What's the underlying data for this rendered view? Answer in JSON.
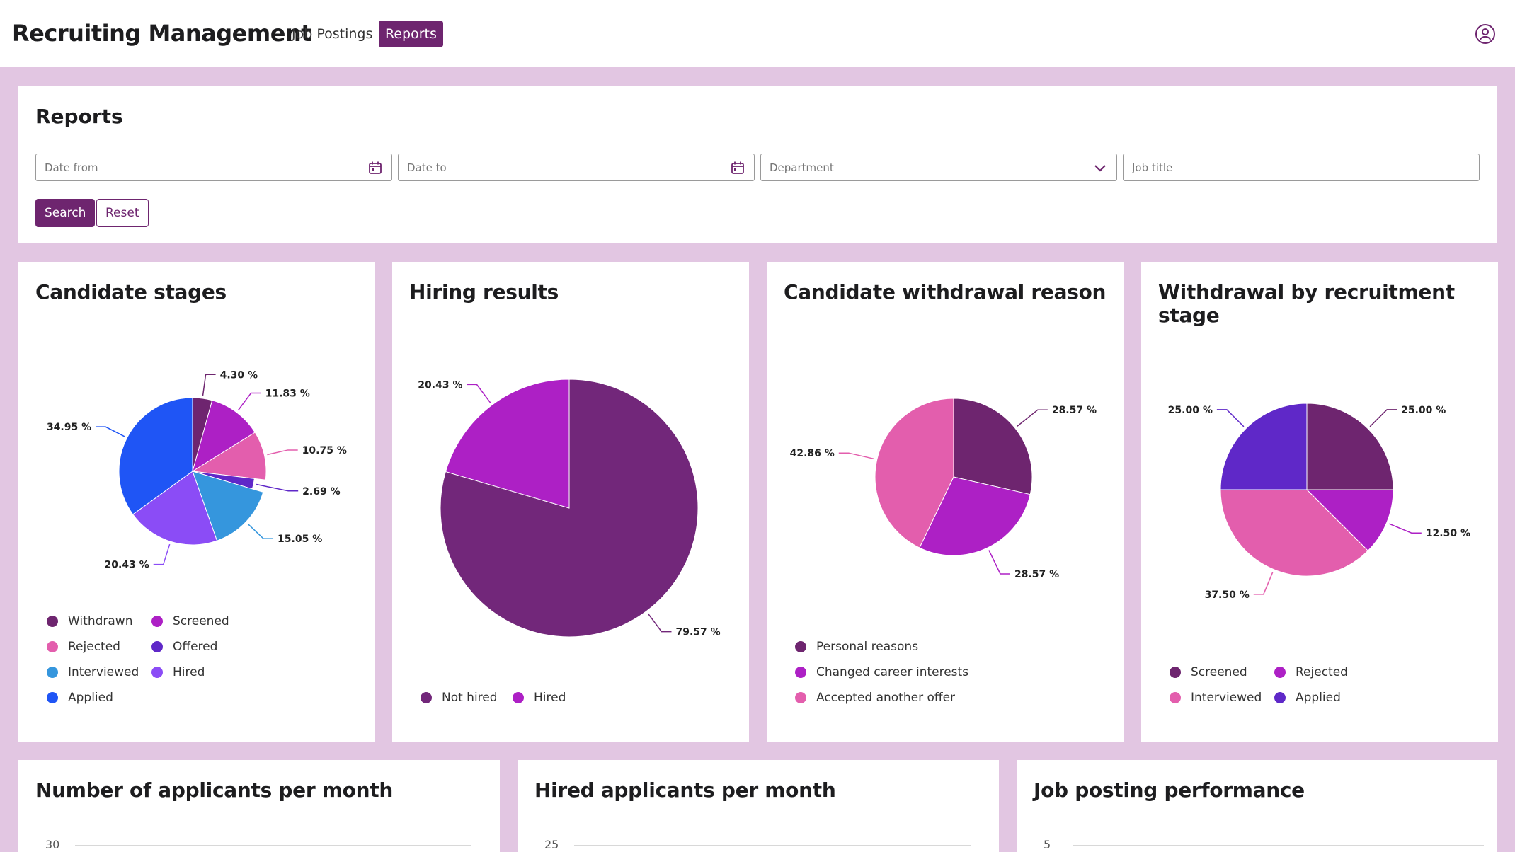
{
  "header": {
    "app_title": "Recruiting Management",
    "tabs": [
      {
        "label": "Job Postings",
        "active": false
      },
      {
        "label": "Reports",
        "active": true
      }
    ],
    "user_icon": "user-circle-icon"
  },
  "filters": {
    "title": "Reports",
    "date_from_placeholder": "Date from",
    "date_to_placeholder": "Date to",
    "department_placeholder": "Department",
    "job_title_placeholder": "Job title",
    "search_label": "Search",
    "reset_label": "Reset"
  },
  "colors": {
    "primary": "#6e256f",
    "withdrawn": "#6e256f",
    "screened": "#ad20c5",
    "rejected": "#e35ead",
    "offered": "#5f28c8",
    "interviewed": "#3596dd",
    "hired": "#8b4cf6",
    "applied": "#1f55f5",
    "not_hired": "#72277a",
    "page_bg": "#e2c6e2"
  },
  "chart_data": [
    {
      "id": "candidate_stages",
      "type": "pie",
      "title": "Candidate stages",
      "slices": [
        {
          "name": "Withdrawn",
          "value": 4.3,
          "label": "4.30 %",
          "color": "#6e256f"
        },
        {
          "name": "Screened",
          "value": 11.83,
          "label": "11.83 %",
          "color": "#ad20c5"
        },
        {
          "name": "Rejected",
          "value": 10.75,
          "label": "10.75 %",
          "color": "#e35ead"
        },
        {
          "name": "Offered",
          "value": 2.69,
          "label": "2.69 %",
          "color": "#5f28c8"
        },
        {
          "name": "Interviewed",
          "value": 15.05,
          "label": "15.05 %",
          "color": "#3596dd"
        },
        {
          "name": "Hired",
          "value": 20.43,
          "label": "20.43 %",
          "color": "#8b4cf6"
        },
        {
          "name": "Applied",
          "value": 34.95,
          "label": "34.95 %",
          "color": "#1f55f5"
        }
      ],
      "legend": [
        "Withdrawn",
        "Screened",
        "Rejected",
        "Offered",
        "Interviewed",
        "Hired",
        "Applied"
      ]
    },
    {
      "id": "hiring_results",
      "type": "pie",
      "title": "Hiring results",
      "slices": [
        {
          "name": "Not hired",
          "value": 79.57,
          "label": "79.57 %",
          "color": "#72277a"
        },
        {
          "name": "Hired",
          "value": 20.43,
          "label": "20.43 %",
          "color": "#ad20c5"
        }
      ],
      "legend": [
        "Not hired",
        "Hired"
      ]
    },
    {
      "id": "withdrawal_reason",
      "type": "pie",
      "title": "Candidate withdrawal reason",
      "slices": [
        {
          "name": "Personal reasons",
          "value": 28.57,
          "label": "28.57 %",
          "color": "#6e256f"
        },
        {
          "name": "Changed career interests",
          "value": 28.57,
          "label": "28.57 %",
          "color": "#ad20c5"
        },
        {
          "name": "Accepted another offer",
          "value": 42.86,
          "label": "42.86 %",
          "color": "#e35ead"
        }
      ],
      "legend": [
        "Personal reasons",
        "Changed career interests",
        "Accepted another offer"
      ]
    },
    {
      "id": "withdrawal_by_stage",
      "type": "pie",
      "title": "Withdrawal by recruitment stage",
      "slices": [
        {
          "name": "Screened",
          "value": 25.0,
          "label": "25.00 %",
          "color": "#6e256f"
        },
        {
          "name": "Rejected",
          "value": 12.5,
          "label": "12.50 %",
          "color": "#ad20c5"
        },
        {
          "name": "Interviewed",
          "value": 37.5,
          "label": "37.50 %",
          "color": "#e35ead"
        },
        {
          "name": "Applied",
          "value": 25.0,
          "label": "25.00 %",
          "color": "#5f28c8"
        }
      ],
      "legend": [
        "Screened",
        "Rejected",
        "Interviewed",
        "Applied"
      ]
    },
    {
      "id": "applicants_per_month",
      "type": "line",
      "title": "Number of applicants per month",
      "y_tick_visible": 30
    },
    {
      "id": "hired_per_month",
      "type": "line",
      "title": "Hired applicants per month",
      "y_tick_visible": 25
    },
    {
      "id": "job_posting_performance",
      "type": "bar",
      "title": "Job posting performance",
      "y_tick_visible": 5
    }
  ]
}
